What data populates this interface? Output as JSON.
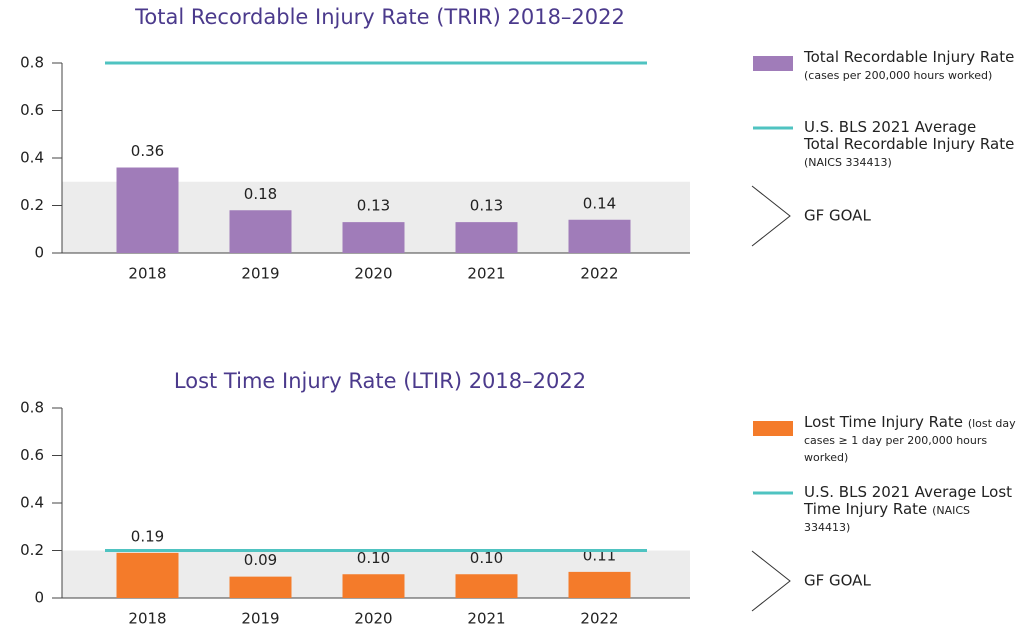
{
  "chart_data": [
    {
      "type": "bar",
      "title": "Total Recordable Injury Rate (TRIR) 2018–2022",
      "categories": [
        "2018",
        "2019",
        "2020",
        "2021",
        "2022"
      ],
      "series": [
        {
          "name": "Total Recordable Injury Rate",
          "note": "(cases per 200,000 hours worked)",
          "color": "#a07cb9",
          "values": [
            0.36,
            0.18,
            0.13,
            0.13,
            0.14
          ],
          "value_labels": [
            "0.36",
            "0.18",
            "0.13",
            "0.13",
            "0.14"
          ]
        }
      ],
      "reference_line": {
        "name": "U.S. BLS 2021 Average Total Recordable Injury Rate",
        "note": "(NAICS 334413)",
        "value": 0.8,
        "color": "#4fc3c1"
      },
      "goal": {
        "name": "GF GOAL",
        "value": 0.3,
        "color": "#ececec"
      },
      "ylim": [
        0,
        0.8
      ],
      "yticks": [
        0,
        0.2,
        0.4,
        0.6,
        0.8
      ]
    },
    {
      "type": "bar",
      "title": "Lost Time Injury Rate (LTIR) 2018–2022",
      "categories": [
        "2018",
        "2019",
        "2020",
        "2021",
        "2022"
      ],
      "series": [
        {
          "name": "Lost Time Injury Rate",
          "note": "(lost day cases ≥ 1 day per 200,000 hours worked)",
          "color": "#f47b2a",
          "values": [
            0.19,
            0.09,
            0.1,
            0.1,
            0.11
          ],
          "value_labels": [
            "0.19",
            "0.09",
            "0.10",
            "0.10",
            "0.11"
          ]
        }
      ],
      "reference_line": {
        "name": "U.S. BLS 2021 Average Lost Time Injury Rate",
        "note": "(NAICS 334413)",
        "value": 0.2,
        "color": "#4fc3c1"
      },
      "goal": {
        "name": "GF GOAL",
        "value": 0.2,
        "color": "#ececec"
      },
      "ylim": [
        0,
        0.8
      ],
      "yticks": [
        0,
        0.2,
        0.4,
        0.6,
        0.8
      ]
    }
  ]
}
